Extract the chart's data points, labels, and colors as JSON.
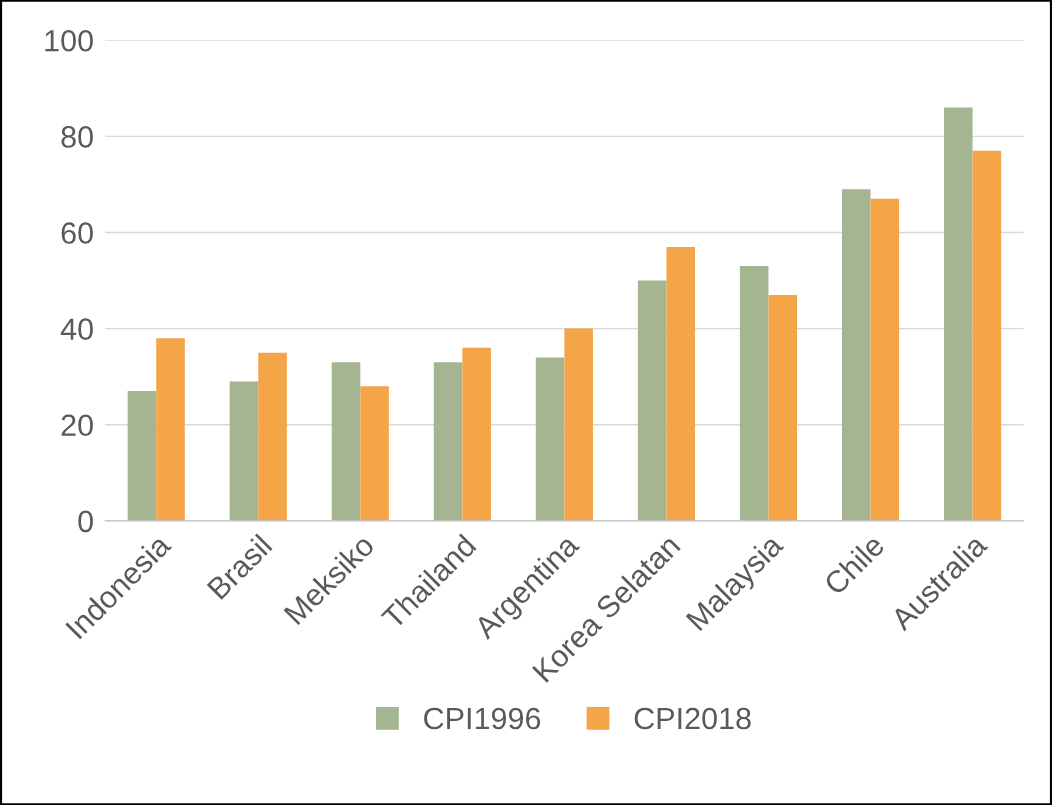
{
  "chart_data": {
    "type": "bar",
    "categories": [
      "Indonesia",
      "Brasil",
      "Meksiko",
      "Thailand",
      "Argentina",
      "Korea Selatan",
      "Malaysia",
      "Chile",
      "Australia"
    ],
    "series": [
      {
        "name": "CPI1996",
        "color": "#a5b592",
        "values": [
          27,
          29,
          33,
          33,
          34,
          50,
          53,
          69,
          86
        ]
      },
      {
        "name": "CPI2018",
        "color": "#f4a548",
        "values": [
          38,
          35,
          28,
          36,
          40,
          57,
          47,
          67,
          77
        ]
      }
    ],
    "ylim": [
      0,
      100
    ],
    "yticks": [
      0,
      20,
      40,
      60,
      80,
      100
    ],
    "grid": "y",
    "legend": "bottom"
  }
}
